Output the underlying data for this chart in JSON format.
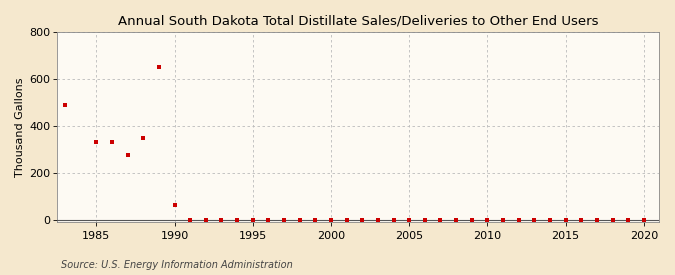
{
  "title": "Annual South Dakota Total Distillate Sales/Deliveries to Other End Users",
  "ylabel": "Thousand Gallons",
  "source": "Source: U.S. Energy Information Administration",
  "outer_bg_color": "#f5e8ce",
  "plot_bg_color": "#fdfaf3",
  "marker_color": "#cc0000",
  "marker_style": "s",
  "marker_size": 3.5,
  "xlim": [
    1982.5,
    2021
  ],
  "ylim": [
    -10,
    800
  ],
  "yticks": [
    0,
    200,
    400,
    600,
    800
  ],
  "xticks": [
    1985,
    1990,
    1995,
    2000,
    2005,
    2010,
    2015,
    2020
  ],
  "grid_color": "#bbbbbb",
  "title_fontsize": 9.5,
  "tick_fontsize": 8,
  "ylabel_fontsize": 8,
  "source_fontsize": 7,
  "data_x": [
    1983,
    1985,
    1986,
    1987,
    1988,
    1989,
    1990,
    1991,
    1992,
    1993,
    1994,
    1995,
    1996,
    1997,
    1998,
    1999,
    2000,
    2001,
    2002,
    2003,
    2004,
    2005,
    2006,
    2007,
    2008,
    2009,
    2010,
    2011,
    2012,
    2013,
    2014,
    2015,
    2016,
    2017,
    2018,
    2019,
    2020
  ],
  "data_y": [
    490,
    330,
    330,
    275,
    350,
    650,
    65,
    1,
    1,
    1,
    1,
    1,
    1,
    1,
    1,
    1,
    1,
    1,
    1,
    1,
    1,
    1,
    1,
    1,
    1,
    1,
    1,
    1,
    1,
    1,
    1,
    1,
    1,
    1,
    1,
    1,
    1
  ]
}
